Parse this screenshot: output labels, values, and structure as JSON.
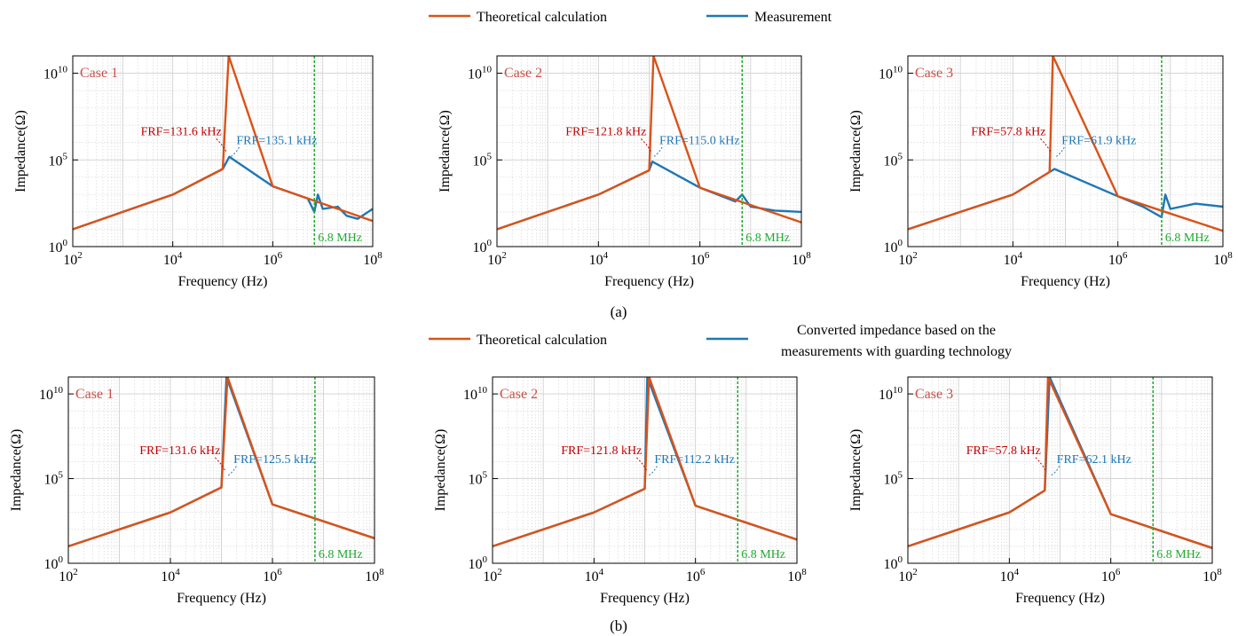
{
  "colors": {
    "theory": "#d95319",
    "measure": "#1f77b4",
    "frf_theory": "#c00000",
    "frf_measure": "#1f77b4",
    "marker": "#1faa2f",
    "case_label": "#c8514a",
    "grid": "#d0d0d0"
  },
  "legend_a": {
    "theory": "Theoretical calculation",
    "measure": "Measurement"
  },
  "legend_b": {
    "theory": "Theoretical calculation",
    "measure_line1": "Converted impedance based on the",
    "measure_line2": "measurements with guarding technology"
  },
  "panel_labels": {
    "a": "(a)",
    "b": "(b)"
  },
  "chart_data": [
    {
      "type": "line",
      "row": "a",
      "case": "Case 1",
      "xlabel": "Frequency (Hz)",
      "ylabel": "Impedance(Ω)",
      "x_scale": "log",
      "y_scale": "log",
      "xlim": [
        100,
        100000000
      ],
      "ylim": [
        1,
        100000000000.0
      ],
      "x_ticks": [
        "10^2",
        "10^4",
        "10^6",
        "10^8"
      ],
      "y_ticks": [
        "10^0",
        "10^5",
        "10^10"
      ],
      "grid": true,
      "marker_freq_hz": 6800000,
      "marker_label": "6.8 MHz",
      "frf_theory_label": "FRF=131.6 kHz",
      "frf_measure_label": "FRF=135.1 kHz",
      "series": [
        {
          "name": "Theoretical calculation",
          "frf_hz": 131600,
          "x": [
            100,
            1000,
            10000,
            100000,
            131600,
            1000000,
            10000000,
            100000000
          ],
          "y": [
            10,
            100,
            1000,
            30000,
            100000000000.0,
            3000,
            300,
            30
          ]
        },
        {
          "name": "Measurement",
          "frf_hz": 135100,
          "x": [
            100,
            1000,
            10000,
            100000,
            135100,
            1000000,
            5000000,
            6800000,
            8000000,
            10000000,
            20000000,
            30000000,
            50000000,
            100000000
          ],
          "y": [
            10,
            100,
            1000,
            30000,
            150000,
            3000,
            600,
            100,
            1000,
            150,
            200,
            60,
            40,
            150
          ]
        }
      ]
    },
    {
      "type": "line",
      "row": "a",
      "case": "Case 2",
      "xlabel": "Frequency (Hz)",
      "ylabel": "Impedance(Ω)",
      "x_scale": "log",
      "y_scale": "log",
      "xlim": [
        100,
        100000000
      ],
      "ylim": [
        1,
        100000000000.0
      ],
      "x_ticks": [
        "10^2",
        "10^4",
        "10^6",
        "10^8"
      ],
      "y_ticks": [
        "10^0",
        "10^5",
        "10^10"
      ],
      "grid": true,
      "marker_freq_hz": 6800000,
      "marker_label": "6.8 MHz",
      "frf_theory_label": "FRF=121.8 kHz",
      "frf_measure_label": "FRF=115.0 kHz",
      "series": [
        {
          "name": "Theoretical calculation",
          "frf_hz": 121800,
          "x": [
            100,
            1000,
            10000,
            100000,
            121800,
            1000000,
            10000000,
            100000000
          ],
          "y": [
            10,
            100,
            1000,
            25000,
            100000000000.0,
            2500,
            250,
            25
          ]
        },
        {
          "name": "Measurement",
          "frf_hz": 115000,
          "x": [
            100,
            1000,
            10000,
            100000,
            115000,
            1000000,
            5000000,
            6800000,
            10000000,
            30000000,
            100000000
          ],
          "y": [
            10,
            100,
            1000,
            25000,
            80000,
            2500,
            400,
            1000,
            200,
            120,
            100
          ]
        }
      ]
    },
    {
      "type": "line",
      "row": "a",
      "case": "Case 3",
      "xlabel": "Frequency (Hz)",
      "ylabel": "Impedance(Ω)",
      "x_scale": "log",
      "y_scale": "log",
      "xlim": [
        100,
        100000000
      ],
      "ylim": [
        1,
        100000000000.0
      ],
      "x_ticks": [
        "10^2",
        "10^4",
        "10^6",
        "10^8"
      ],
      "y_ticks": [
        "10^0",
        "10^5",
        "10^10"
      ],
      "grid": true,
      "marker_freq_hz": 6800000,
      "marker_label": "6.8 MHz",
      "frf_theory_label": "FRF=57.8 kHz",
      "frf_measure_label": "FRF=61.9 kHz",
      "series": [
        {
          "name": "Theoretical calculation",
          "frf_hz": 57800,
          "x": [
            100,
            1000,
            10000,
            50000,
            57800,
            1000000,
            10000000,
            100000000
          ],
          "y": [
            10,
            100,
            1000,
            20000,
            100000000000.0,
            800,
            80,
            8
          ]
        },
        {
          "name": "Measurement",
          "frf_hz": 61900,
          "x": [
            100,
            1000,
            10000,
            50000,
            61900,
            1000000,
            3000000,
            6800000,
            8000000,
            10000000,
            30000000,
            100000000
          ],
          "y": [
            10,
            100,
            1000,
            20000,
            30000,
            800,
            200,
            50,
            1000,
            150,
            300,
            200
          ]
        }
      ]
    },
    {
      "type": "line",
      "row": "b",
      "case": "Case 1",
      "xlabel": "Frequency (Hz)",
      "ylabel": "Impedance(Ω)",
      "x_scale": "log",
      "y_scale": "log",
      "xlim": [
        100,
        100000000
      ],
      "ylim": [
        1,
        100000000000.0
      ],
      "x_ticks": [
        "10^2",
        "10^4",
        "10^6",
        "10^8"
      ],
      "y_ticks": [
        "10^0",
        "10^5",
        "10^10"
      ],
      "grid": true,
      "marker_freq_hz": 6800000,
      "marker_label": "6.8 MHz",
      "frf_theory_label": "FRF=131.6 kHz",
      "frf_measure_label": "FRF=125.5 kHz",
      "series": [
        {
          "name": "Theoretical calculation",
          "frf_hz": 131600,
          "x": [
            100,
            1000,
            10000,
            100000,
            131600,
            1000000,
            10000000,
            100000000
          ],
          "y": [
            10,
            100,
            1000,
            30000,
            100000000000.0,
            3000,
            300,
            30
          ]
        },
        {
          "name": "Converted impedance based on the measurements with guarding technology",
          "frf_hz": 125500,
          "x": [
            100,
            1000,
            10000,
            100000,
            125500,
            1000000,
            10000000,
            100000000
          ],
          "y": [
            10,
            100,
            1000,
            30000,
            100000000000.0,
            3000,
            300,
            30
          ]
        }
      ]
    },
    {
      "type": "line",
      "row": "b",
      "case": "Case 2",
      "xlabel": "Frequency (Hz)",
      "ylabel": "Impedance(Ω)",
      "x_scale": "log",
      "y_scale": "log",
      "xlim": [
        100,
        100000000
      ],
      "ylim": [
        1,
        100000000000.0
      ],
      "x_ticks": [
        "10^2",
        "10^4",
        "10^6",
        "10^8"
      ],
      "y_ticks": [
        "10^0",
        "10^5",
        "10^10"
      ],
      "grid": true,
      "marker_freq_hz": 6800000,
      "marker_label": "6.8 MHz",
      "frf_theory_label": "FRF=121.8 kHz",
      "frf_measure_label": "FRF=112.2 kHz",
      "series": [
        {
          "name": "Theoretical calculation",
          "frf_hz": 121800,
          "x": [
            100,
            1000,
            10000,
            100000,
            121800,
            1000000,
            10000000,
            100000000
          ],
          "y": [
            10,
            100,
            1000,
            25000,
            100000000000.0,
            2500,
            250,
            25
          ]
        },
        {
          "name": "Converted impedance based on the measurements with guarding technology",
          "frf_hz": 112200,
          "x": [
            100,
            1000,
            10000,
            100000,
            112200,
            1000000,
            10000000,
            100000000
          ],
          "y": [
            10,
            100,
            1000,
            25000,
            100000000000.0,
            2500,
            250,
            25
          ]
        }
      ]
    },
    {
      "type": "line",
      "row": "b",
      "case": "Case 3",
      "xlabel": "Frequency (Hz)",
      "ylabel": "Impedance(Ω)",
      "x_scale": "log",
      "y_scale": "log",
      "xlim": [
        100,
        100000000
      ],
      "ylim": [
        1,
        100000000000.0
      ],
      "x_ticks": [
        "10^2",
        "10^4",
        "10^6",
        "10^8"
      ],
      "y_ticks": [
        "10^0",
        "10^5",
        "10^10"
      ],
      "grid": true,
      "marker_freq_hz": 6800000,
      "marker_label": "6.8 MHz",
      "frf_theory_label": "FRF=57.8 kHz",
      "frf_measure_label": "FRF=62.1 kHz",
      "series": [
        {
          "name": "Theoretical calculation",
          "frf_hz": 57800,
          "x": [
            100,
            1000,
            10000,
            50000,
            57800,
            1000000,
            10000000,
            100000000
          ],
          "y": [
            10,
            100,
            1000,
            20000,
            100000000000.0,
            800,
            80,
            8
          ]
        },
        {
          "name": "Converted impedance based on the measurements with guarding technology",
          "frf_hz": 62100,
          "x": [
            100,
            1000,
            10000,
            50000,
            62100,
            1000000,
            10000000,
            100000000
          ],
          "y": [
            10,
            100,
            1000,
            20000,
            100000000000.0,
            800,
            80,
            8
          ]
        }
      ]
    }
  ]
}
